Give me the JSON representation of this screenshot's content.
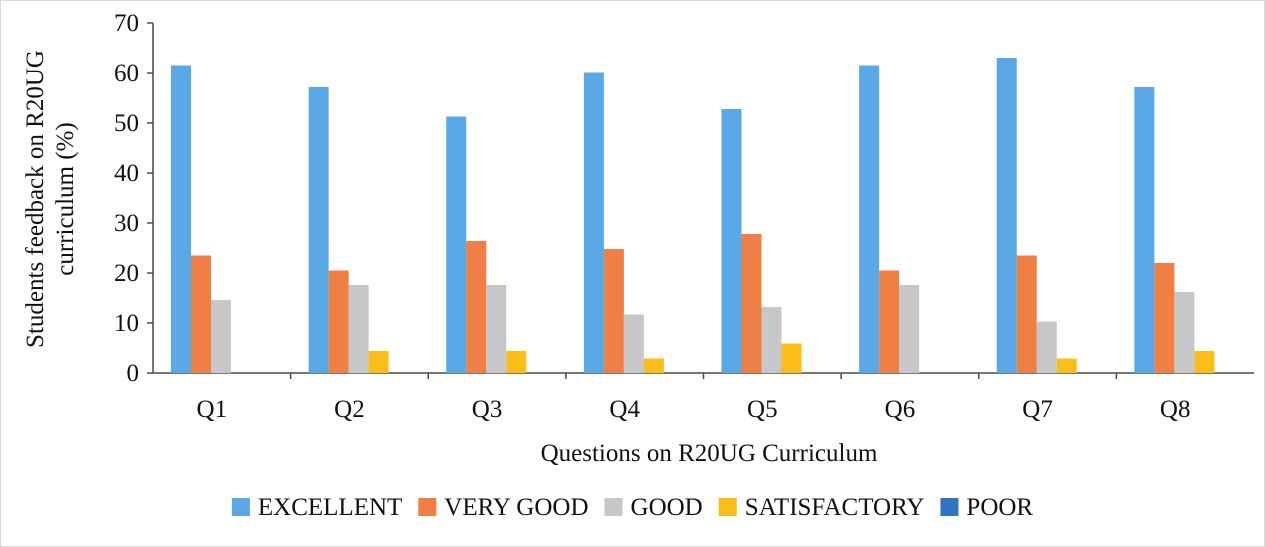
{
  "chart_data": {
    "type": "bar",
    "title": "",
    "xlabel": "Questions on R20UG Curriculum",
    "ylabel_lines": [
      "Students feedback on R20UG",
      "curriculum (%)"
    ],
    "ylim": [
      0,
      70
    ],
    "yticks": [
      "0",
      "10",
      "20",
      "30",
      "40",
      "50",
      "60",
      "70"
    ],
    "grid": false,
    "legend_position": "bottom",
    "categories": [
      "Q1",
      "Q2",
      "Q3",
      "Q4",
      "Q5",
      "Q6",
      "Q7",
      "Q8"
    ],
    "series": [
      {
        "name": "EXCELLENT",
        "color": "#5aa9e6",
        "values": [
          61.5,
          57.2,
          51.3,
          60.1,
          52.8,
          61.5,
          63.0,
          57.2
        ]
      },
      {
        "name": "VERY GOOD",
        "color": "#f07f45",
        "values": [
          23.5,
          20.5,
          26.4,
          24.8,
          27.8,
          20.5,
          23.5,
          22.0
        ]
      },
      {
        "name": "GOOD",
        "color": "#c7c7c9",
        "values": [
          14.6,
          17.6,
          17.6,
          11.7,
          13.2,
          17.6,
          10.3,
          16.2
        ]
      },
      {
        "name": "SATISFACTORY",
        "color": "#fbbd19",
        "values": [
          0,
          4.4,
          4.4,
          2.9,
          5.9,
          0,
          2.9,
          4.4
        ]
      },
      {
        "name": "POOR",
        "color": "#2f75c0",
        "values": [
          0,
          0,
          0,
          0,
          0,
          0,
          0,
          0
        ]
      }
    ]
  }
}
